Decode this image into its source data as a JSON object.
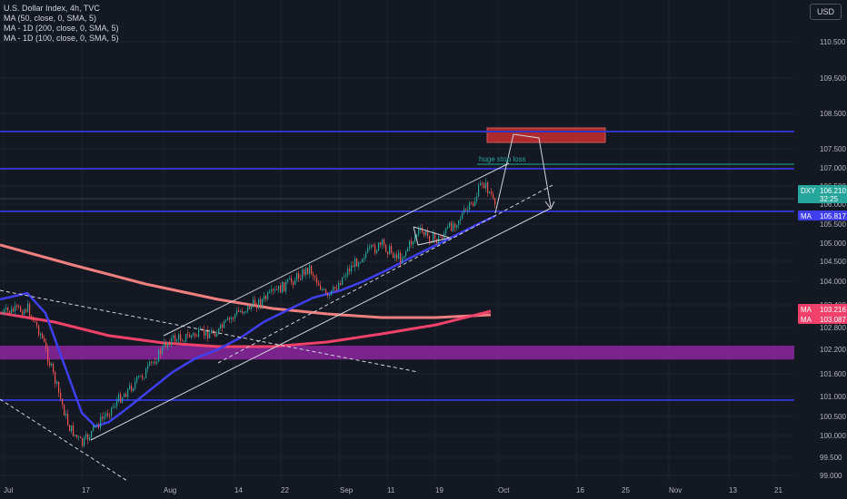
{
  "header": {
    "title": "U.S. Dollar Index, 4h, TVC",
    "indicators": [
      "MA (50, close, 0, SMA, 5)",
      "MA - 1D (200, close, 0, SMA, 5)",
      "MA - 1D (100, close, 0, SMA, 5)"
    ],
    "currency": "USD"
  },
  "colors": {
    "background": "#141823",
    "ma50": "#3f3ff0",
    "ma_daily": "#f0416b",
    "ma_daily_light": "#f08080",
    "horizontal_line": "#2d3ab5",
    "zone_purple": "#9c27b0",
    "zone_red": "#d32f2f",
    "up_candle": "#26a69a",
    "down_candle": "#ef5350",
    "channel": "#d1d4dc"
  },
  "chart_data": {
    "type": "candlestick",
    "symbol": "DXY",
    "timeframe": "4h",
    "y_ticks": [
      "110.500",
      "109.500",
      "108.500",
      "107.500",
      "107.000",
      "106.500",
      "106.000",
      "105.500",
      "105.000",
      "104.500",
      "104.000",
      "103.400",
      "102.800",
      "102.200",
      "101.600",
      "101.000",
      "100.500",
      "100.000",
      "99.500",
      "99.000"
    ],
    "x_ticks": [
      "Jul",
      "17",
      "Aug",
      "14",
      "22",
      "Sep",
      "11",
      "19",
      "Oct",
      "16",
      "25",
      "Nov",
      "13",
      "21"
    ],
    "price_labels": [
      {
        "tag": "DXY",
        "value": "106.210",
        "sub": "32:25",
        "color": "#26a69a"
      },
      {
        "tag": "MA",
        "value": "105.817",
        "color": "#3f3ff0"
      },
      {
        "tag": "MA",
        "value": "103.216",
        "color": "#f0416b"
      },
      {
        "tag": "MA",
        "value": "103.087",
        "color": "#f0416b"
      }
    ],
    "annotations": [
      "huge stop loss"
    ],
    "horizontal_levels": [
      107.8,
      107.0,
      105.8,
      100.95
    ],
    "zones": [
      {
        "from": 101.95,
        "to": 102.3,
        "color": "purple"
      },
      {
        "from": 107.6,
        "to": 107.85,
        "color": "red"
      }
    ]
  }
}
